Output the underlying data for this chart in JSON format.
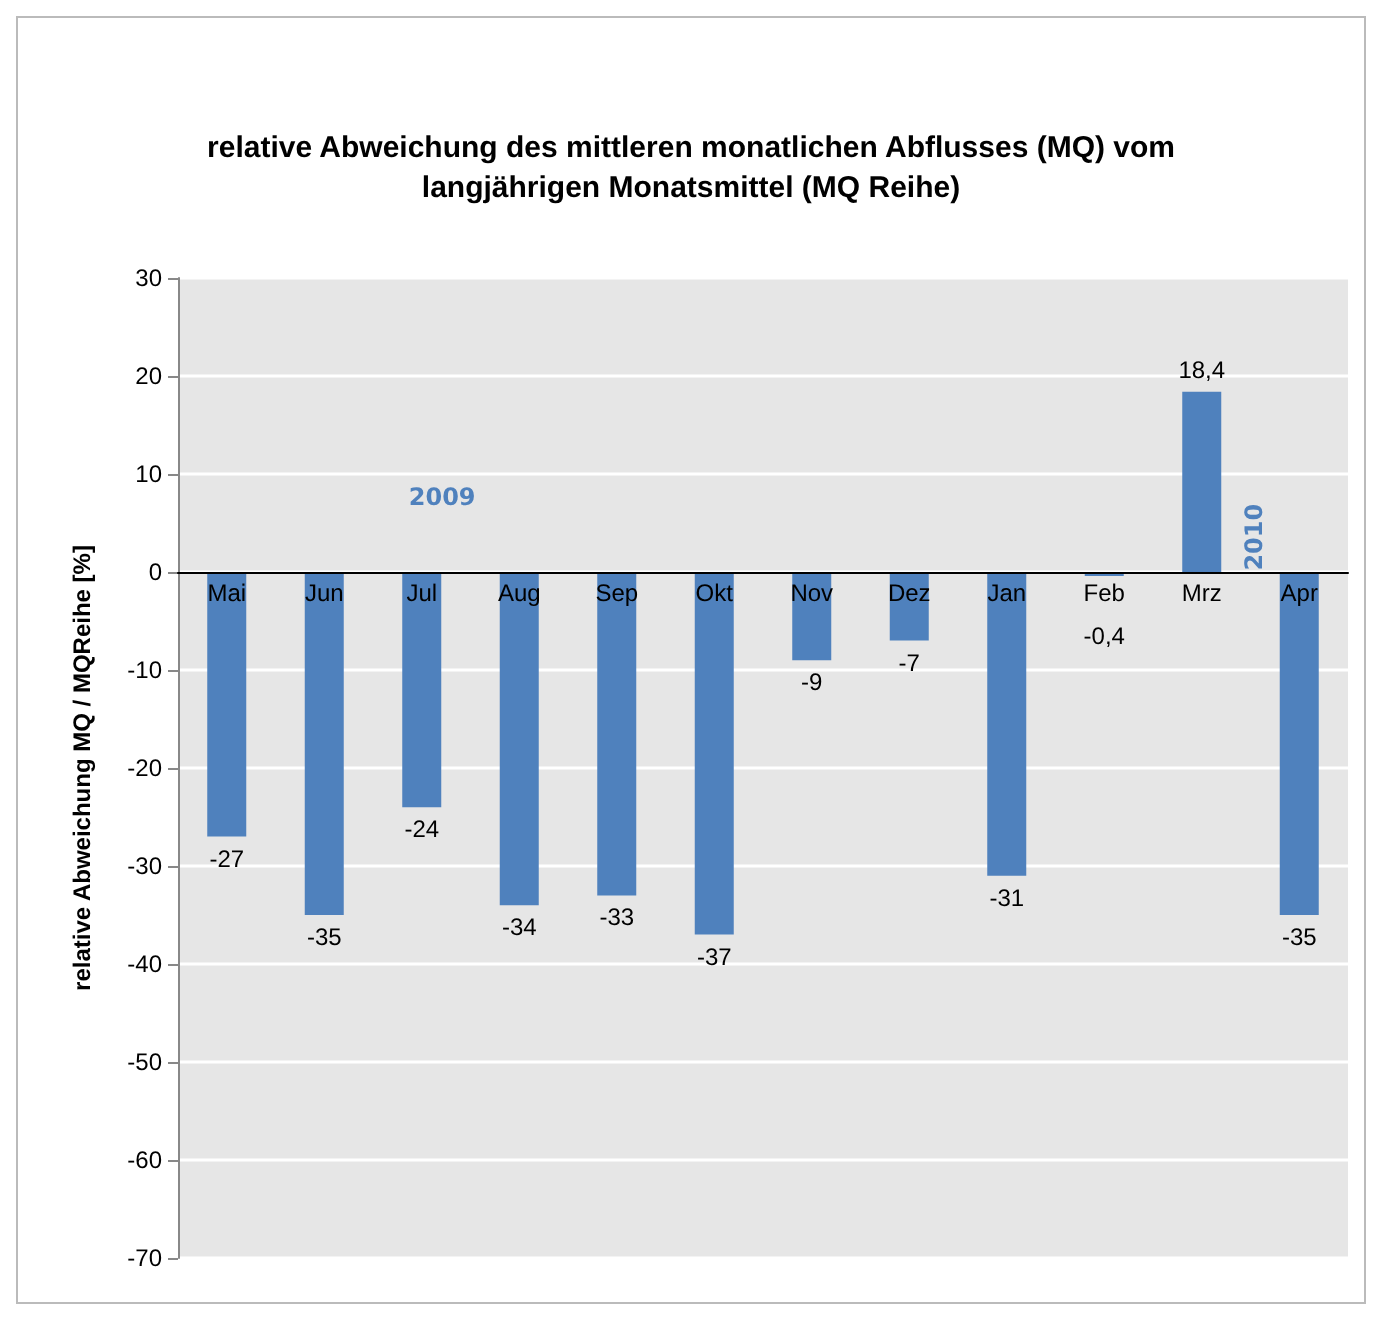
{
  "chart_data": {
    "type": "bar",
    "title": "relative Abweichung des mittleren monatlichen Abflusses (MQ) vom\nlangjährigen Monatsmittel (MQ Reihe)",
    "ylabel": "relative Abweichung MQ / MQReihe [%]",
    "categories": [
      "Mai",
      "Jun",
      "Jul",
      "Aug",
      "Sep",
      "Okt",
      "Nov",
      "Dez",
      "Jan",
      "Feb",
      "Mrz",
      "Apr"
    ],
    "values": [
      -27,
      -35,
      -24,
      -34,
      -33,
      -37,
      -9,
      -7,
      -31,
      -0.4,
      18.4,
      -35
    ],
    "value_labels": [
      "-27",
      "-35",
      "-24",
      "-34",
      "-33",
      "-37",
      "-9",
      "-7",
      "-31",
      "-0,4",
      "18,4",
      "-35"
    ],
    "color": "#4f81bd",
    "ylim": [
      -70,
      30
    ],
    "yticks": [
      -70,
      -60,
      -50,
      -40,
      -30,
      -20,
      -10,
      0,
      10,
      20,
      30
    ],
    "grid": "y",
    "annotations": [
      "2009",
      "2010"
    ]
  }
}
